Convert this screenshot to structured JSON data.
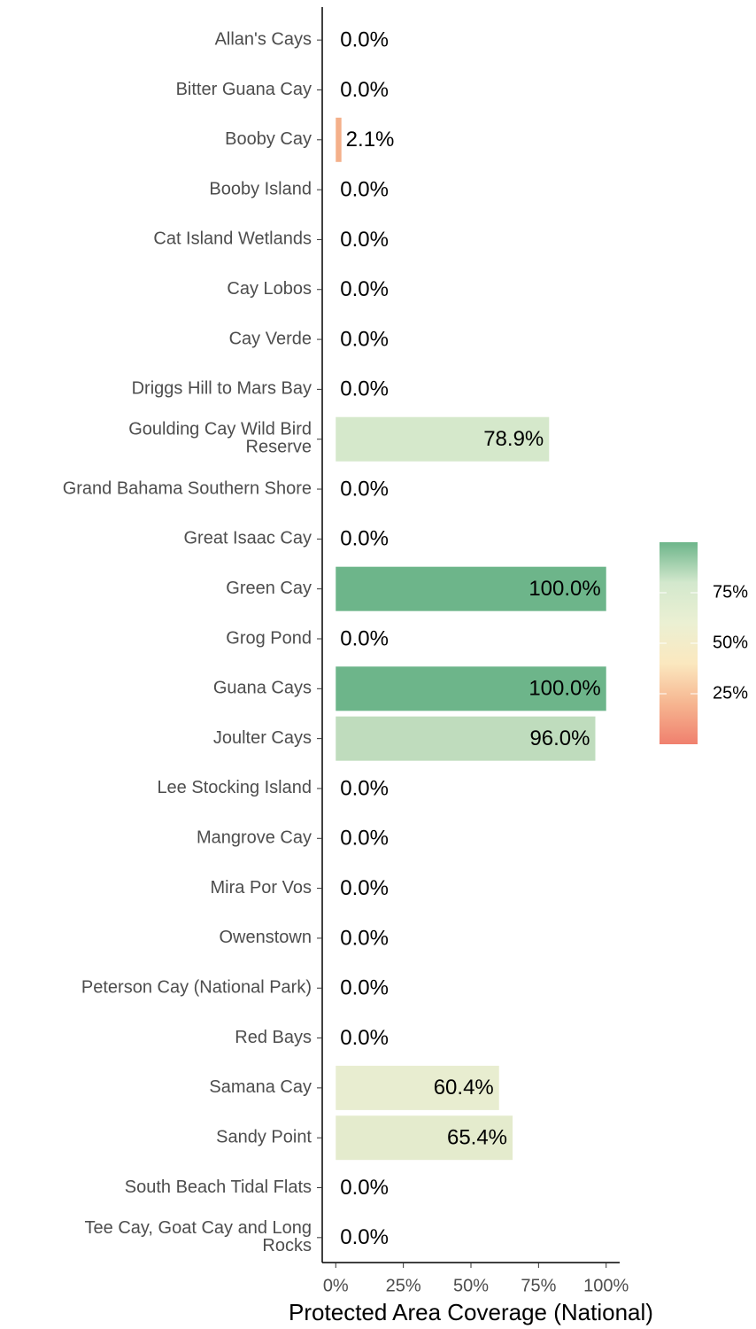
{
  "chart_data": {
    "type": "bar",
    "orientation": "horizontal",
    "x_axis_label": "Protected Area Coverage (National)",
    "categories": [
      "Allan's Cays",
      "Bitter Guana Cay",
      "Booby Cay",
      "Booby Island",
      "Cat Island Wetlands",
      "Cay Lobos",
      "Cay Verde",
      "Driggs Hill to Mars Bay",
      "Goulding Cay Wild Bird\nReserve",
      "Grand Bahama Southern Shore",
      "Great Isaac Cay",
      "Green Cay",
      "Grog Pond",
      "Guana Cays",
      "Joulter Cays",
      "Lee Stocking Island",
      "Mangrove Cay",
      "Mira Por Vos",
      "Owenstown",
      "Peterson Cay (National Park)",
      "Red Bays",
      "Samana Cay",
      "Sandy Point",
      "South Beach Tidal Flats",
      "Tee Cay, Goat Cay and Long\nRocks"
    ],
    "values": [
      0,
      0,
      2.1,
      0,
      0,
      0,
      0,
      0,
      78.9,
      0,
      0,
      100,
      0,
      100,
      96,
      0,
      0,
      0,
      0,
      0,
      0,
      60.4,
      65.4,
      0,
      0
    ],
    "value_labels": [
      "0.0%",
      "0.0%",
      "2.1%",
      "0.0%",
      "0.0%",
      "0.0%",
      "0.0%",
      "0.0%",
      "78.9%",
      "0.0%",
      "0.0%",
      "100.0%",
      "0.0%",
      "100.0%",
      "96.0%",
      "0.0%",
      "0.0%",
      "0.0%",
      "0.0%",
      "0.0%",
      "0.0%",
      "60.4%",
      "65.4%",
      "0.0%",
      "0.0%"
    ],
    "colors": [
      null,
      null,
      "#f4b08a",
      null,
      null,
      null,
      null,
      null,
      "#d5e8cb",
      null,
      null,
      "#6db58a",
      null,
      "#6db58a",
      "#bfdcbd",
      null,
      null,
      null,
      null,
      null,
      null,
      "#e8edd0",
      "#e4ebcd",
      null,
      null
    ],
    "xlim": [
      -5,
      105
    ],
    "xticks": [
      {
        "value": 0,
        "label": "0%"
      },
      {
        "value": 25,
        "label": "25%"
      },
      {
        "value": 50,
        "label": "50%"
      },
      {
        "value": 75,
        "label": "75%"
      },
      {
        "value": 100,
        "label": "100%"
      }
    ],
    "legend": {
      "position": "right",
      "lim": [
        0,
        100
      ],
      "colors": [
        "#f0806e",
        "#f6b590",
        "#fbe8bf",
        "#ebf0d3",
        "#d3e8cd",
        "#6db58a"
      ],
      "ticks": [
        {
          "value": 25,
          "label": "25%"
        },
        {
          "value": 50,
          "label": "50%"
        },
        {
          "value": 75,
          "label": "75%"
        }
      ]
    }
  }
}
